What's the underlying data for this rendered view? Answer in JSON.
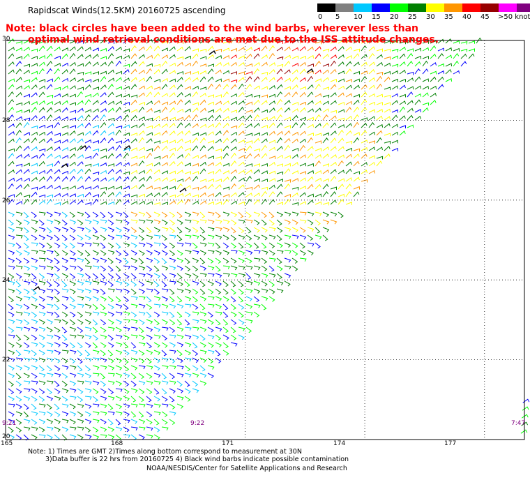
{
  "title": "Rapidscat Winds(12.5KM) 20160725 ascending",
  "note": {
    "line1": "Note: black circles have been added to the wind barbs, wherever less than",
    "line2": "optimal wind retrieval conditions are met due to the ISS attitude changes."
  },
  "color_scale": {
    "colors": [
      "#000000",
      "#808080",
      "#00c8ff",
      "#0000ff",
      "#00ff00",
      "#008000",
      "#ffff00",
      "#ff9600",
      "#ff0000",
      "#960000",
      "#ff00ff",
      "#800080"
    ],
    "labels": [
      "0",
      "5",
      "10",
      "15",
      "20",
      "25",
      "30",
      "35",
      "40",
      "45",
      ">50 knots"
    ]
  },
  "axes": {
    "lat_labels": [
      "30",
      "28",
      "26",
      "24",
      "22",
      "20"
    ],
    "lon_labels": [
      "165",
      "168",
      "171",
      "174",
      "177"
    ]
  },
  "time_labels": [
    "9:21",
    "9:22",
    "7:47"
  ],
  "footer": {
    "line1": "Note: 1) Times are GMT 2)Times along bottom correspond to measurement at 30N",
    "line2": "3)Data buffer is 22 hrs from 20160725 4) Black wind barbs indicate possible contamination",
    "line3": "NOAA/NESDIS/Center for Satellite Applications and Research"
  },
  "map": {
    "lon_range": [
      165,
      178
    ],
    "lat_range": [
      20,
      30
    ],
    "grid_lons": [
      168,
      171,
      174,
      177
    ],
    "grid_lats": [
      22,
      24,
      26,
      28,
      30
    ],
    "swath_main": {
      "edge_top_lon": 177.0,
      "edge_bottom_lon": 168.7
    },
    "swath_corner": {
      "lon_start": 177.9,
      "lat_top": 21.5
    }
  }
}
